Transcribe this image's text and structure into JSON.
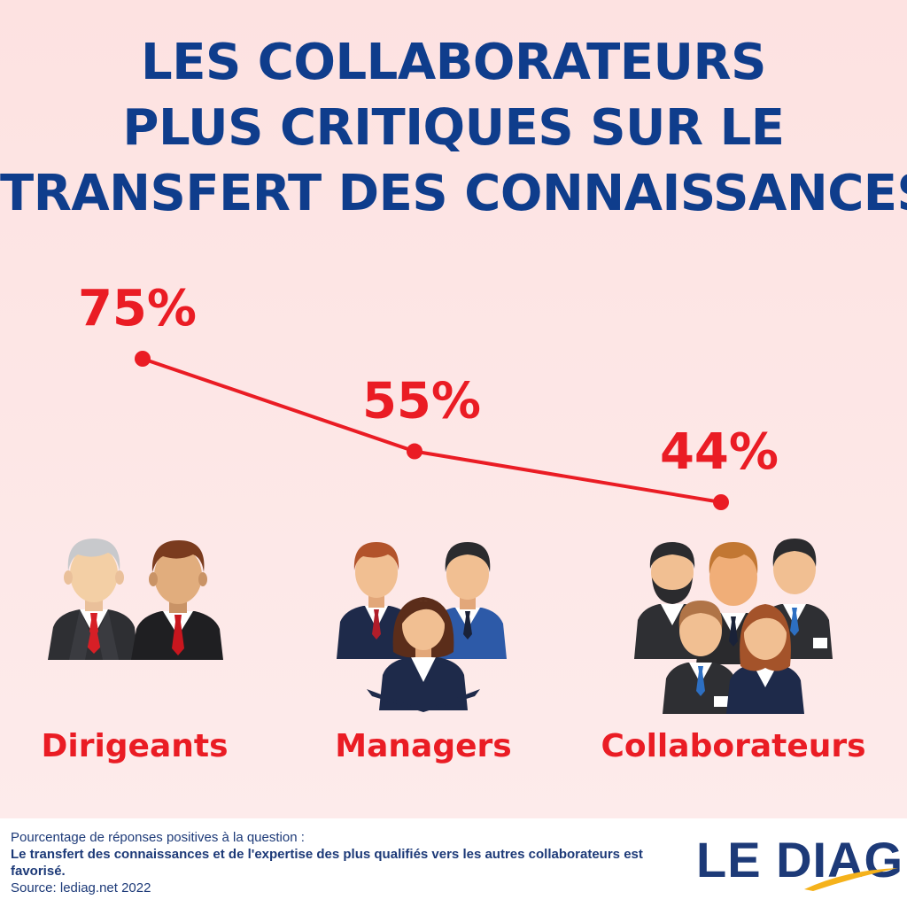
{
  "title_lines": [
    "LES COLLABORATEURS",
    "PLUS CRITIQUES SUR LE",
    "TRANSFERT DES CONNAISSANCES"
  ],
  "chart_data": {
    "type": "line",
    "categories": [
      "Dirigeants",
      "Managers",
      "Collaborateurs"
    ],
    "values": [
      75,
      55,
      44
    ],
    "value_labels": [
      "75%",
      "55%",
      "44%"
    ],
    "unit": "%",
    "color": "#ea1c24",
    "grid": false,
    "legend": "none"
  },
  "footer": {
    "intro": "Pourcentage de réponses positives à la question :",
    "question": "Le transfert des connaissances et de l'expertise des plus qualifiés vers les autres collaborateurs est favorisé.",
    "source": "Source: lediag.net 2022"
  },
  "logo": {
    "text": "LE DIAG",
    "swoosh_color": "#f5b21b"
  },
  "colors": {
    "title": "#0f3d8c",
    "accent": "#ea1c24",
    "background": "#fde8e8"
  }
}
